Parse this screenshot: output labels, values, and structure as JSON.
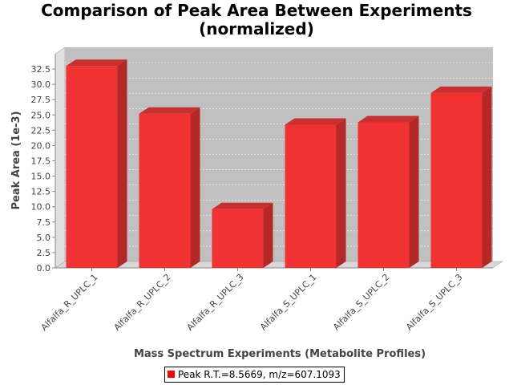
{
  "chart_data": {
    "type": "bar",
    "title_line1": "Comparison of Peak Area Between Experiments",
    "title_line2": "(normalized)",
    "xlabel": "Mass Spectrum Experiments (Metabolite Profiles)",
    "ylabel": "Peak Area (1e-3)",
    "ylim": [
      0,
      35
    ],
    "yticks": [
      "0.0",
      "2.5",
      "5.0",
      "7.5",
      "10.0",
      "12.5",
      "15.0",
      "17.5",
      "20.0",
      "22.5",
      "25.0",
      "27.5",
      "30.0",
      "32.5"
    ],
    "categories": [
      "Alfalfa_R_UPLC_1",
      "Alfalfa_R_UPLC_2",
      "Alfalfa_R_UPLC_3",
      "Alfalfa_S_UPLC_1",
      "Alfalfa_S_UPLC_2",
      "Alfalfa_S_UPLC_3"
    ],
    "series": [
      {
        "name": "Peak R.T.=8.5669, m/z=607.1093",
        "values": [
          33.0,
          25.2,
          9.6,
          23.4,
          23.8,
          28.6
        ]
      }
    ],
    "grid": true,
    "legend_position": "bottom",
    "colors": {
      "bar_front": "#f03232",
      "bar_side": "#b42828",
      "bar_top": "#c83030",
      "plot_back": "#c0c0c0",
      "plot_floor": "#d8d8d8",
      "plot_wall": "#e0e0e0",
      "legend_swatch": "#ff0000"
    }
  }
}
